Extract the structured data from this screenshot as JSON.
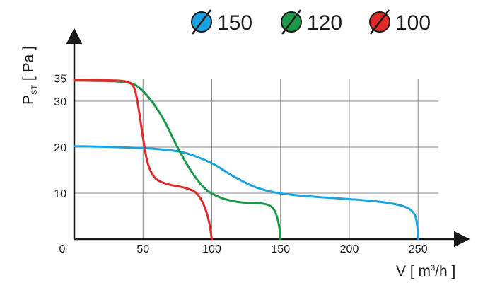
{
  "chart_data": {
    "type": "line",
    "x_axis": {
      "label_prefix": "V [ m",
      "label_sup": "3",
      "label_suffix": "/h ]",
      "range": [
        0,
        275
      ],
      "tick_values": [
        50,
        100,
        150,
        200,
        250
      ],
      "tick_labels": [
        "50",
        "100",
        "150",
        "200",
        "250"
      ],
      "origin_label": "0"
    },
    "y_axis": {
      "label_main": "P",
      "label_sub": "ST",
      "label_suffix": " [ Pa ]",
      "range": [
        0,
        45
      ],
      "tick_values": [
        10,
        20,
        30,
        35
      ],
      "tick_labels": [
        "10",
        "20",
        "30",
        "35"
      ]
    },
    "grid": true,
    "legend_position": "top-right",
    "series": [
      {
        "name": "150",
        "color": "#1aa3e0",
        "points": [
          [
            0,
            20.2
          ],
          [
            20,
            20.1
          ],
          [
            40,
            19.9
          ],
          [
            60,
            19.6
          ],
          [
            80,
            18.8
          ],
          [
            100,
            16.5
          ],
          [
            115,
            13.8
          ],
          [
            130,
            11.5
          ],
          [
            145,
            10.2
          ],
          [
            160,
            9.6
          ],
          [
            180,
            9.1
          ],
          [
            200,
            8.7
          ],
          [
            220,
            8.2
          ],
          [
            235,
            7.5
          ],
          [
            244,
            6.5
          ],
          [
            248,
            5.0
          ],
          [
            249.5,
            2.5
          ],
          [
            250,
            0
          ]
        ]
      },
      {
        "name": "120",
        "color": "#1a9a48",
        "points": [
          [
            0,
            34.5
          ],
          [
            20,
            34.4
          ],
          [
            35,
            34.2
          ],
          [
            45,
            33.4
          ],
          [
            55,
            30.5
          ],
          [
            65,
            26.0
          ],
          [
            75,
            20.0
          ],
          [
            85,
            14.8
          ],
          [
            95,
            11.0
          ],
          [
            105,
            9.2
          ],
          [
            115,
            8.3
          ],
          [
            125,
            7.9
          ],
          [
            135,
            7.8
          ],
          [
            142,
            7.3
          ],
          [
            146,
            6.0
          ],
          [
            148.5,
            3.5
          ],
          [
            149.5,
            1.5
          ],
          [
            150,
            0
          ]
        ]
      },
      {
        "name": "100",
        "color": "#e02a2a",
        "points": [
          [
            0,
            34.6
          ],
          [
            30,
            34.5
          ],
          [
            40,
            34.0
          ],
          [
            44,
            32.5
          ],
          [
            47,
            28.0
          ],
          [
            50,
            22.0
          ],
          [
            53,
            17.0
          ],
          [
            57,
            14.0
          ],
          [
            62,
            12.6
          ],
          [
            70,
            11.8
          ],
          [
            80,
            11.2
          ],
          [
            88,
            10.2
          ],
          [
            93,
            8.2
          ],
          [
            96.5,
            5.5
          ],
          [
            98.5,
            3.0
          ],
          [
            99.5,
            1.0
          ],
          [
            100,
            0
          ]
        ]
      }
    ]
  }
}
